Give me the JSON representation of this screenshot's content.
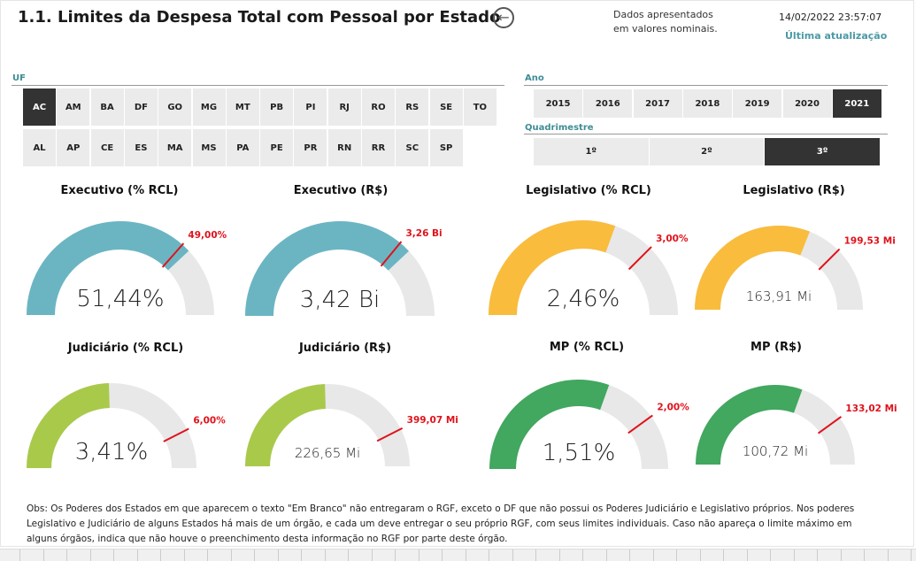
{
  "header": {
    "title": "1.1. Limites da Despesa Total com Pessoal por Estado",
    "back_icon": "arrow-left-circle-icon",
    "note_line1": "Dados apresentados",
    "note_line2": "em valores nominais.",
    "timestamp": "14/02/2022 23:57:07",
    "last_update_label": "Última atualização"
  },
  "uf": {
    "label": "UF",
    "row1": [
      "AC",
      "AM",
      "BA",
      "DF",
      "GO",
      "MG",
      "MT",
      "PB",
      "PI",
      "RJ",
      "RO",
      "RS",
      "SE",
      "TO"
    ],
    "row2": [
      "AL",
      "AP",
      "CE",
      "ES",
      "MA",
      "MS",
      "PA",
      "PE",
      "PR",
      "RN",
      "RR",
      "SC",
      "SP"
    ],
    "selected": "AC"
  },
  "ano": {
    "label": "Ano",
    "options": [
      "2015",
      "2016",
      "2017",
      "2018",
      "2019",
      "2020",
      "2021"
    ],
    "selected": "2021"
  },
  "quadrimestre": {
    "label": "Quadrimestre",
    "options": [
      "1º",
      "2º",
      "3º"
    ],
    "selected": "3º"
  },
  "colors": {
    "executivo": "#6bb5c3",
    "legislativo": "#f9bc3d",
    "judiciario": "#a9c94b",
    "mp": "#42a75f",
    "track": "#e8e8e8",
    "target": "#e0121b",
    "selected_button": "#333333"
  },
  "gauges": [
    {
      "title": "Executivo (% RCL)",
      "value": "51,44%",
      "target": "49,00%",
      "color": "executivo",
      "fill_fraction": 0.76,
      "target_fraction": 0.73
    },
    {
      "title": "Executivo (R$)",
      "value": "3,42 Bi",
      "target": "3,26 Bi",
      "color": "executivo",
      "fill_fraction": 0.76,
      "target_fraction": 0.72
    },
    {
      "title": "Legislativo (% RCL)",
      "value": "2,46%",
      "target": "3,00%",
      "color": "legislativo",
      "fill_fraction": 0.61,
      "target_fraction": 0.75
    },
    {
      "title": "Legislativo (R$)",
      "value": "163,91 Mi",
      "target": "199,53 Mi",
      "color": "legislativo",
      "fill_fraction": 0.62,
      "target_fraction": 0.75
    },
    {
      "title": "Judiciário (% RCL)",
      "value": "3,41%",
      "target": "6,00%",
      "color": "judiciario",
      "fill_fraction": 0.49,
      "target_fraction": 0.85
    },
    {
      "title": "Judiciário (R$)",
      "value": "226,65 Mi",
      "target": "399,07 Mi",
      "color": "judiciario",
      "fill_fraction": 0.49,
      "target_fraction": 0.85
    },
    {
      "title": "MP (% RCL)",
      "value": "1,51%",
      "target": "2,00%",
      "color": "mp",
      "fill_fraction": 0.61,
      "target_fraction": 0.8
    },
    {
      "title": "MP (R$)",
      "value": "100,72 Mi",
      "target": "133,02 Mi",
      "color": "mp",
      "fill_fraction": 0.61,
      "target_fraction": 0.8
    }
  ],
  "obs": "Obs: Os Poderes dos Estados em que aparecem o texto \"Em Branco\" não entregaram o RGF, exceto o DF que não possui os Poderes Judiciário e Legislativo próprios. Nos poderes Legislativo e Judiciário de alguns Estados há mais de um órgão, e cada um deve entregar o seu próprio RGF, com seus limites individuais. Caso não apareça o limite máximo em alguns órgãos, indica que não houve  o preenchimento desta informação no  RGF por parte deste órgão."
}
